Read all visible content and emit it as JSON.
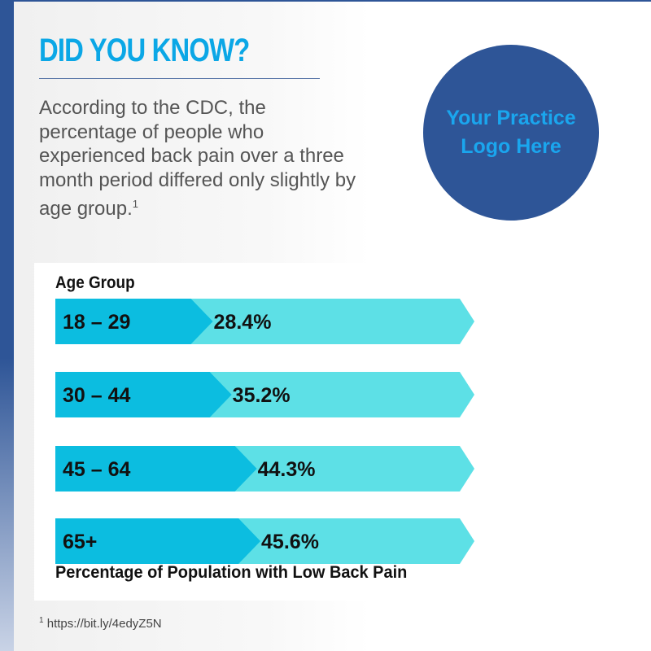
{
  "header": {
    "title": "DID YOU KNOW?",
    "body": "According to the CDC, the percentage of people who experienced back pain over a three month period differed only slightly by age group.",
    "footnote_marker": "1"
  },
  "logo": {
    "text": "Your Practice Logo Here"
  },
  "footnote": {
    "marker": "1",
    "text": "https://bit.ly/4edyZ5N"
  },
  "colors": {
    "dark_bar": "#0cbde0",
    "light_bar": "#5de0e6",
    "navy": "#2e5597",
    "title": "#0ba7e6"
  },
  "chart_data": {
    "type": "bar",
    "orientation": "horizontal",
    "title": "",
    "ylabel": "Age Group",
    "xlabel": "Percentage of Population with Low Back Pain",
    "categories": [
      "18 – 29",
      "30 – 44",
      "45 – 64",
      "65+"
    ],
    "values": [
      28.4,
      35.2,
      44.3,
      45.6
    ],
    "value_labels": [
      "28.4%",
      "35.2%",
      "44.3%",
      "45.6%"
    ],
    "xlim": [
      0,
      100
    ]
  }
}
